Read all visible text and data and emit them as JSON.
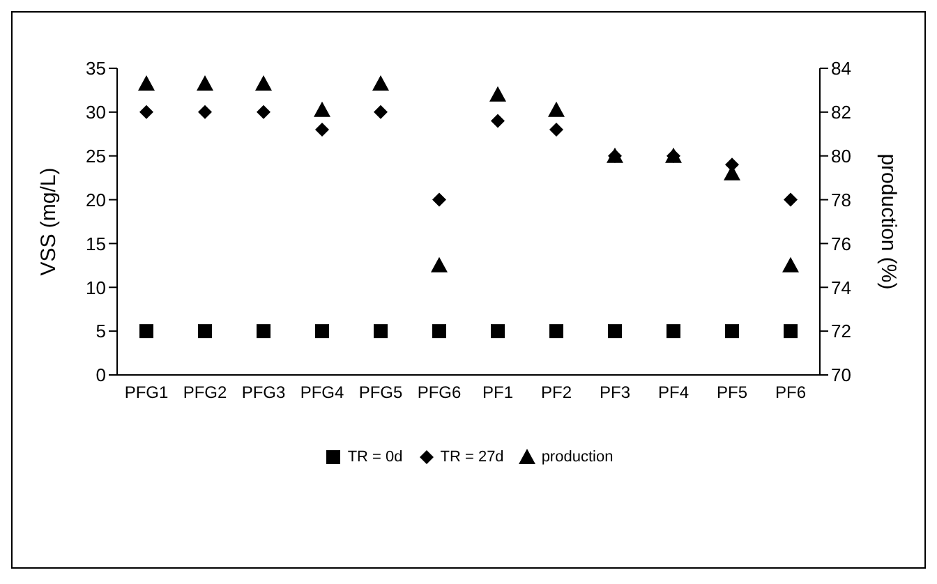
{
  "chart_data": {
    "type": "scatter",
    "ylabel": "VSS (mg/L)",
    "y2label": "production (%)",
    "categories": [
      "PFG1",
      "PFG2",
      "PFG3",
      "PFG4",
      "PFG5",
      "PFG6",
      "PF1",
      "PF2",
      "PF3",
      "PF4",
      "PF5",
      "PF6"
    ],
    "ylim": [
      0,
      35
    ],
    "yticks": [
      0,
      5,
      10,
      15,
      20,
      25,
      30,
      35
    ],
    "y2lim": [
      70,
      84
    ],
    "y2ticks": [
      70,
      72,
      74,
      76,
      78,
      80,
      82,
      84
    ],
    "grid": false,
    "legend": "bottom",
    "series": [
      {
        "name": "TR = 0d",
        "color": "#000000",
        "marker": "square",
        "values": [
          5,
          5,
          5,
          5,
          5,
          5,
          5,
          5,
          5,
          5,
          5,
          5
        ]
      },
      {
        "name": "TR = 27d",
        "color": "#000000",
        "marker": "diamond",
        "values": [
          30,
          30,
          30,
          28,
          30,
          20,
          29,
          28,
          25,
          25,
          24,
          20
        ]
      },
      {
        "name": "production",
        "color": "#000000",
        "marker": "triangle",
        "axis": "y2",
        "values": [
          83.3,
          83.3,
          83.3,
          82.1,
          83.3,
          75,
          82.8,
          82.1,
          80,
          80,
          79.2,
          75
        ]
      }
    ]
  }
}
